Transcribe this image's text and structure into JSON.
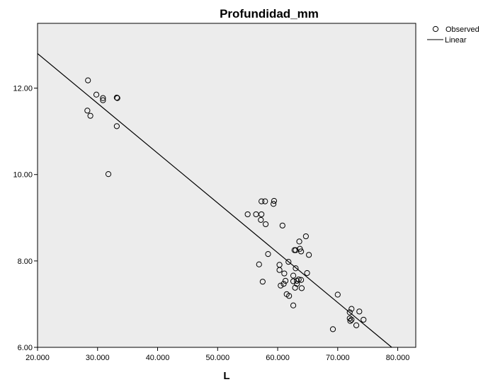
{
  "chart_data": {
    "type": "scatter",
    "title": "Profundidad_mm",
    "xlabel": "L",
    "ylabel": "",
    "xlim": [
      20,
      83
    ],
    "ylim": [
      6,
      13.5
    ],
    "x_ticks": [
      20,
      30,
      40,
      50,
      60,
      70,
      80
    ],
    "x_tick_labels": [
      "20.000",
      "30.000",
      "40.000",
      "50.000",
      "60.000",
      "70.000",
      "80.000"
    ],
    "y_ticks": [
      6,
      8,
      10,
      12
    ],
    "y_tick_labels": [
      "6.00",
      "8.00",
      "10.00",
      "12.00"
    ],
    "grid": false,
    "legend_position": "top-right",
    "legend": [
      "Observed",
      "Linear"
    ],
    "plot_background": "#ececec",
    "series": [
      {
        "name": "Observed",
        "marker": "open-circle",
        "points": [
          [
            28.4,
            12.18
          ],
          [
            29.8,
            11.85
          ],
          [
            30.9,
            11.77
          ],
          [
            30.9,
            11.72
          ],
          [
            33.2,
            11.78
          ],
          [
            33.3,
            11.77
          ],
          [
            28.3,
            11.48
          ],
          [
            28.8,
            11.36
          ],
          [
            33.2,
            11.12
          ],
          [
            31.8,
            10.01
          ],
          [
            57.3,
            9.38
          ],
          [
            57.9,
            9.38
          ],
          [
            59.4,
            9.39
          ],
          [
            59.3,
            9.32
          ],
          [
            55.0,
            9.08
          ],
          [
            56.4,
            9.08
          ],
          [
            57.3,
            9.08
          ],
          [
            57.2,
            8.95
          ],
          [
            58.0,
            8.85
          ],
          [
            60.8,
            8.82
          ],
          [
            64.7,
            8.57
          ],
          [
            63.6,
            8.45
          ],
          [
            62.8,
            8.25
          ],
          [
            63.0,
            8.25
          ],
          [
            63.7,
            8.28
          ],
          [
            63.9,
            8.22
          ],
          [
            65.2,
            8.14
          ],
          [
            58.4,
            8.16
          ],
          [
            61.8,
            7.98
          ],
          [
            56.9,
            7.92
          ],
          [
            60.3,
            7.91
          ],
          [
            63.0,
            7.83
          ],
          [
            60.3,
            7.79
          ],
          [
            64.9,
            7.72
          ],
          [
            61.1,
            7.71
          ],
          [
            62.6,
            7.66
          ],
          [
            61.3,
            7.54
          ],
          [
            62.6,
            7.53
          ],
          [
            63.2,
            7.54
          ],
          [
            63.5,
            7.57
          ],
          [
            63.9,
            7.56
          ],
          [
            57.5,
            7.52
          ],
          [
            61.0,
            7.47
          ],
          [
            60.5,
            7.43
          ],
          [
            63.2,
            7.47
          ],
          [
            62.9,
            7.38
          ],
          [
            64.0,
            7.37
          ],
          [
            61.5,
            7.23
          ],
          [
            61.9,
            7.19
          ],
          [
            70.0,
            7.22
          ],
          [
            62.6,
            6.97
          ],
          [
            73.6,
            6.83
          ],
          [
            72.3,
            6.89
          ],
          [
            72.0,
            6.81
          ],
          [
            72.0,
            6.67
          ],
          [
            72.3,
            6.64
          ],
          [
            74.3,
            6.64
          ],
          [
            72.1,
            6.61
          ],
          [
            73.1,
            6.51
          ],
          [
            69.2,
            6.42
          ]
        ]
      },
      {
        "name": "Linear",
        "line": [
          [
            20,
            12.8
          ],
          [
            79,
            6
          ]
        ]
      }
    ]
  }
}
